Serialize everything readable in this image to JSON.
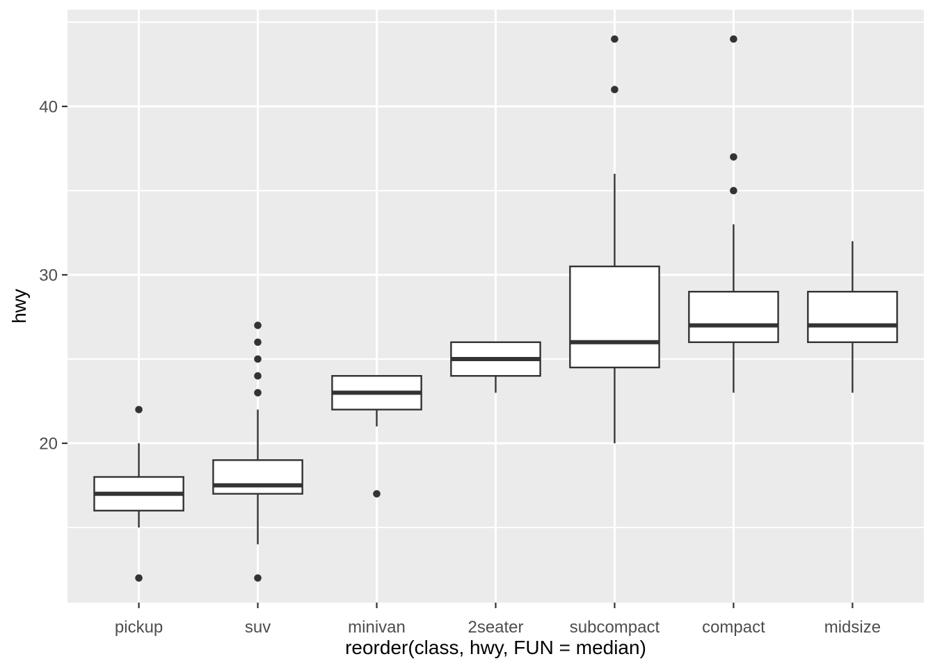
{
  "chart_data": {
    "type": "boxplot",
    "title": "",
    "xlabel": "reorder(class, hwy, FUN = median)",
    "ylabel": "hwy",
    "categories": [
      "pickup",
      "suv",
      "minivan",
      "2seater",
      "subcompact",
      "compact",
      "midsize"
    ],
    "series": [
      {
        "category": "pickup",
        "whisker_low": 15,
        "q1": 16,
        "median": 17,
        "q3": 18,
        "whisker_high": 20,
        "outliers": [
          22,
          12
        ]
      },
      {
        "category": "suv",
        "whisker_low": 14,
        "q1": 17,
        "median": 17.5,
        "q3": 19,
        "whisker_high": 22,
        "outliers": [
          27,
          26,
          25,
          24,
          23,
          12
        ]
      },
      {
        "category": "minivan",
        "whisker_low": 21,
        "q1": 22,
        "median": 23,
        "q3": 24,
        "whisker_high": 24,
        "outliers": [
          17
        ]
      },
      {
        "category": "2seater",
        "whisker_low": 23,
        "q1": 24,
        "median": 25,
        "q3": 26,
        "whisker_high": 26,
        "outliers": []
      },
      {
        "category": "subcompact",
        "whisker_low": 20,
        "q1": 24.5,
        "median": 26,
        "q3": 30.5,
        "whisker_high": 36,
        "outliers": [
          44,
          41
        ]
      },
      {
        "category": "compact",
        "whisker_low": 23,
        "q1": 26,
        "median": 27,
        "q3": 29,
        "whisker_high": 33,
        "outliers": [
          44,
          37,
          35
        ]
      },
      {
        "category": "midsize",
        "whisker_low": 23,
        "q1": 26,
        "median": 27,
        "q3": 29,
        "whisker_high": 32,
        "outliers": []
      }
    ],
    "ylim": [
      10.54,
      45.74
    ],
    "yticks_major": [
      20,
      30,
      40
    ],
    "yticks_minor": [
      15,
      25,
      35,
      45
    ],
    "ytick_labels": [
      "20",
      "30",
      "40"
    ],
    "grid": "white major and minor horizontal lines, white vertical line per category, on grey panel",
    "legend": "none",
    "colors": {
      "panel_bg": "#EBEBEB",
      "grid": "#FFFFFF",
      "box_stroke": "#333333",
      "box_fill": "#FFFFFF",
      "median_stroke": "#333333",
      "outlier_fill": "#333333",
      "tick_mark": "#333333",
      "tick_label": "#4D4D4D",
      "axis_title": "#000000",
      "figure_bg": "#FFFFFF"
    }
  }
}
